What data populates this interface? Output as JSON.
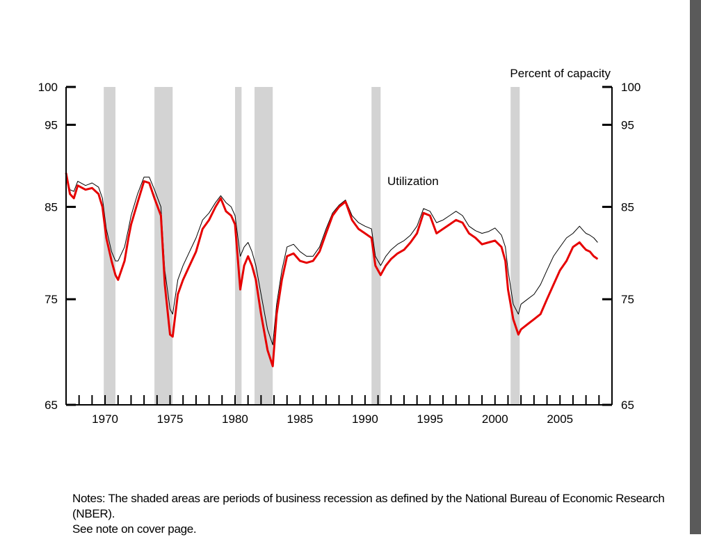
{
  "chart_data": {
    "type": "line",
    "unit_label": "Percent of capacity",
    "annotation": "Utilization",
    "x_range": [
      1967,
      2009
    ],
    "ylim": [
      65,
      100
    ],
    "y_scale": "log",
    "y_ticks": [
      65,
      75,
      85,
      95,
      100
    ],
    "x_tick_labels": [
      "1970",
      "1975",
      "1980",
      "1985",
      "1990",
      "1995",
      "2000",
      "2005"
    ],
    "recessions": [
      {
        "start": 1969.9,
        "end": 1970.8
      },
      {
        "start": 1973.8,
        "end": 1975.2
      },
      {
        "start": 1980.0,
        "end": 1980.5
      },
      {
        "start": 1981.5,
        "end": 1982.9
      },
      {
        "start": 1990.5,
        "end": 1991.2
      },
      {
        "start": 2001.2,
        "end": 2001.9
      }
    ],
    "series": [
      {
        "color": "#e60000",
        "x": [
          1967.0,
          1967.3,
          1967.6,
          1967.9,
          1968.5,
          1969.0,
          1969.5,
          1969.8,
          1970.1,
          1970.5,
          1970.8,
          1971.0,
          1971.5,
          1971.8,
          1972.0,
          1972.5,
          1973.0,
          1973.4,
          1973.8,
          1974.3,
          1974.6,
          1975.0,
          1975.2,
          1975.6,
          1976.0,
          1976.5,
          1977.0,
          1977.5,
          1978.0,
          1978.5,
          1978.9,
          1979.3,
          1979.7,
          1980.0,
          1980.4,
          1980.7,
          1981.0,
          1981.3,
          1981.6,
          1982.0,
          1982.5,
          1982.9,
          1983.2,
          1983.6,
          1984.0,
          1984.5,
          1985.0,
          1985.5,
          1986.0,
          1986.5,
          1987.0,
          1987.5,
          1988.0,
          1988.5,
          1989.0,
          1989.5,
          1990.0,
          1990.5,
          1990.8,
          1991.2,
          1991.6,
          1992.0,
          1992.5,
          1993.0,
          1993.5,
          1994.0,
          1994.5,
          1995.0,
          1995.5,
          1996.0,
          1996.5,
          1997.0,
          1997.5,
          1998.0,
          1998.5,
          1999.0,
          1999.5,
          2000.0,
          2000.5,
          2000.8,
          2001.0,
          2001.4,
          2001.8,
          2002.0,
          2002.5,
          2003.0,
          2003.5,
          2004.0,
          2004.5,
          2005.0,
          2005.5,
          2006.0,
          2006.5,
          2006.8,
          2007.0,
          2007.3,
          2007.6,
          2007.9
        ],
        "y": [
          89.0,
          86.5,
          86.0,
          87.5,
          87.0,
          87.2,
          86.5,
          85.0,
          81.5,
          79.0,
          77.5,
          77.0,
          79.0,
          81.5,
          83.0,
          85.5,
          88.0,
          87.8,
          86.0,
          84.0,
          76.5,
          71.5,
          71.3,
          75.5,
          77.0,
          78.5,
          80.0,
          82.5,
          83.5,
          85.0,
          86.0,
          84.5,
          84.0,
          83.0,
          76.0,
          78.5,
          79.5,
          78.5,
          77.0,
          73.5,
          70.0,
          68.5,
          73.5,
          77.0,
          79.5,
          79.8,
          79.0,
          78.8,
          79.0,
          80.0,
          82.0,
          84.0,
          85.0,
          85.6,
          83.5,
          82.5,
          82.0,
          81.5,
          78.5,
          77.5,
          78.5,
          79.2,
          79.8,
          80.2,
          81.0,
          82.0,
          84.3,
          84.0,
          82.0,
          82.5,
          83.0,
          83.5,
          83.2,
          82.0,
          81.5,
          80.8,
          81.0,
          81.2,
          80.5,
          79.0,
          76.0,
          73.0,
          71.5,
          72.0,
          72.5,
          73.0,
          73.5,
          75.0,
          76.5,
          78.0,
          79.0,
          80.5,
          81.0,
          80.5,
          80.2,
          80.0,
          79.5,
          79.2
        ]
      },
      {
        "color": "#000000",
        "x": [
          1967.0,
          1967.3,
          1967.6,
          1967.9,
          1968.5,
          1969.0,
          1969.5,
          1969.8,
          1970.1,
          1970.5,
          1970.8,
          1971.0,
          1971.5,
          1971.8,
          1972.0,
          1972.5,
          1973.0,
          1973.4,
          1973.8,
          1974.3,
          1974.6,
          1975.0,
          1975.2,
          1975.6,
          1976.0,
          1976.5,
          1977.0,
          1977.5,
          1978.0,
          1978.5,
          1978.9,
          1979.3,
          1979.7,
          1980.0,
          1980.4,
          1980.7,
          1981.0,
          1981.3,
          1981.6,
          1982.0,
          1982.5,
          1982.9,
          1983.2,
          1983.6,
          1984.0,
          1984.5,
          1985.0,
          1985.5,
          1986.0,
          1986.5,
          1987.0,
          1987.5,
          1988.0,
          1988.5,
          1989.0,
          1989.5,
          1990.0,
          1990.5,
          1990.8,
          1991.2,
          1991.6,
          1992.0,
          1992.5,
          1993.0,
          1993.5,
          1994.0,
          1994.5,
          1995.0,
          1995.5,
          1996.0,
          1996.5,
          1997.0,
          1997.5,
          1998.0,
          1998.5,
          1999.0,
          1999.5,
          2000.0,
          2000.5,
          2000.8,
          2001.0,
          2001.4,
          2001.8,
          2002.0,
          2002.5,
          2003.0,
          2003.5,
          2004.0,
          2004.5,
          2005.0,
          2005.5,
          2006.0,
          2006.5,
          2006.8,
          2007.0,
          2007.3,
          2007.6,
          2007.9
        ],
        "y": [
          89.0,
          87.0,
          86.8,
          88.0,
          87.5,
          87.8,
          87.3,
          86.0,
          82.5,
          80.0,
          79.0,
          79.0,
          80.5,
          82.5,
          84.0,
          86.5,
          88.5,
          88.5,
          87.0,
          85.0,
          78.0,
          74.0,
          73.5,
          77.0,
          78.5,
          80.0,
          81.5,
          83.5,
          84.3,
          85.5,
          86.3,
          85.5,
          85.0,
          84.0,
          79.5,
          80.5,
          81.0,
          80.0,
          78.5,
          75.5,
          72.0,
          70.5,
          74.5,
          78.0,
          80.5,
          80.8,
          80.0,
          79.5,
          79.5,
          80.5,
          82.5,
          84.3,
          85.2,
          85.8,
          84.0,
          83.2,
          82.8,
          82.5,
          79.5,
          78.5,
          79.5,
          80.2,
          80.8,
          81.2,
          81.8,
          82.8,
          84.8,
          84.5,
          83.2,
          83.5,
          84.0,
          84.5,
          84.0,
          82.8,
          82.3,
          82.0,
          82.2,
          82.6,
          81.8,
          80.5,
          78.0,
          74.5,
          73.5,
          74.5,
          75.0,
          75.5,
          76.5,
          78.0,
          79.5,
          80.5,
          81.5,
          82.0,
          82.8,
          82.3,
          82.0,
          81.8,
          81.5,
          81.0
        ]
      }
    ]
  },
  "notes": {
    "line1": "Notes: The shaded areas are periods of business recession as defined by the National Bureau of Economic Research (NBER).",
    "line2": "See note on cover page."
  },
  "colors": {
    "recession_shade": "#d3d3d3",
    "window_border": "#5a5a5a"
  }
}
